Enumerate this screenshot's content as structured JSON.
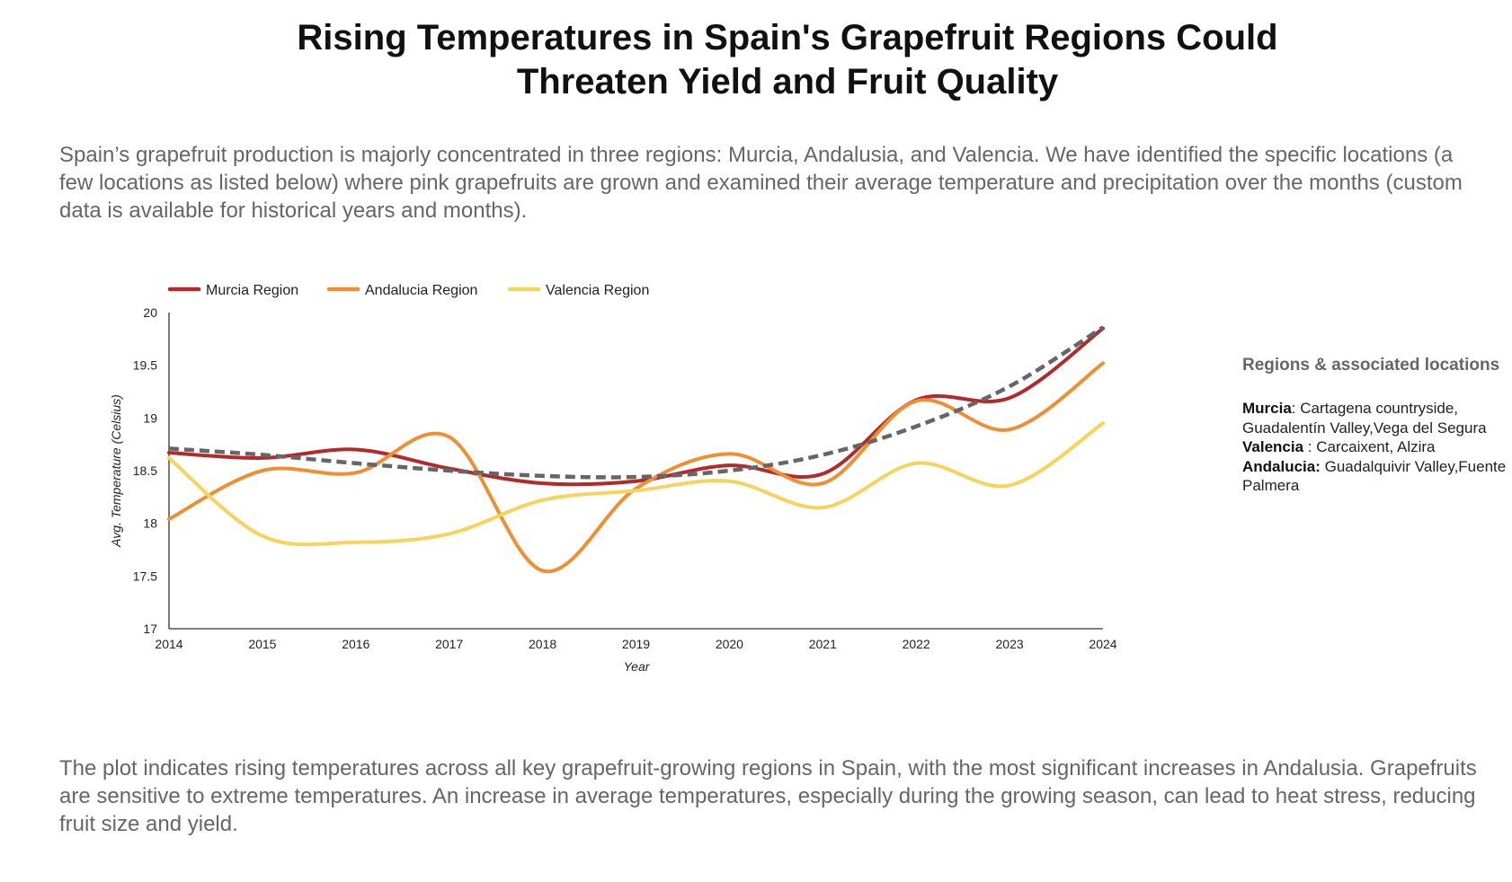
{
  "title": {
    "line1": "Rising Temperatures in Spain's Grapefruit Regions Could",
    "line2": "Threaten Yield and Fruit Quality"
  },
  "intro_text": "Spain’s grapefruit production is majorly concentrated in three regions: Murcia, Andalusia, and Valencia. We have identified the specific locations (a few locations as listed below) where pink grapefruits are grown and examined their average temperature and precipitation over the months (custom data is available for historical years and months).",
  "conclusion_text": "The plot indicates rising temperatures across all key grapefruit-growing regions in Spain, with the most significant increases in Andalusia. Grapefruits are sensitive to extreme temperatures. An increase in average temperatures, especially during the growing season, can lead to heat stress, reducing fruit size and yield.",
  "sidebar": {
    "heading": "Regions & associated locations",
    "entries": [
      {
        "region": "Murcia",
        "separator": ": ",
        "lines": [
          "Cartagena countryside,",
          "Guadalentín Valley,Vega del Segura"
        ]
      },
      {
        "region": "Valencia",
        "separator": " : ",
        "lines": [
          "Carcaixent,  Alzira"
        ]
      },
      {
        "region": "Andalucia:",
        "separator": " ",
        "lines": [
          "Guadalquivir Valley,Fuente",
          "Palmera"
        ]
      }
    ]
  },
  "chart_data": {
    "type": "line",
    "title": "",
    "xlabel": "Year",
    "ylabel": "Avg. Temperature (Celsius)",
    "x": [
      2014,
      2015,
      2016,
      2017,
      2018,
      2019,
      2020,
      2021,
      2022,
      2023,
      2024
    ],
    "ylim": [
      17,
      20
    ],
    "yticks": [
      17,
      17.5,
      18,
      18.5,
      19,
      19.5,
      20
    ],
    "grid": false,
    "legend_position": "top-left",
    "series": [
      {
        "name": "Murcia Region",
        "color": "#b22a2a",
        "values": [
          18.67,
          18.62,
          18.7,
          18.52,
          18.38,
          18.4,
          18.55,
          18.47,
          19.17,
          19.19,
          19.85
        ]
      },
      {
        "name": "Andalucia Region",
        "color": "#ef8f31",
        "values": [
          18.04,
          18.5,
          18.48,
          18.82,
          17.55,
          18.33,
          18.66,
          18.38,
          19.16,
          18.89,
          19.52
        ]
      },
      {
        "name": "Valencia Region",
        "color": "#f6d45c",
        "values": [
          18.62,
          17.88,
          17.82,
          17.9,
          18.22,
          18.31,
          18.4,
          18.15,
          18.57,
          18.36,
          18.95
        ]
      }
    ],
    "trendline": {
      "style": "dashed",
      "color": "#666666",
      "values": [
        18.71,
        18.65,
        18.57,
        18.5,
        18.45,
        18.44,
        18.5,
        18.65,
        18.92,
        19.3,
        19.86
      ]
    }
  }
}
